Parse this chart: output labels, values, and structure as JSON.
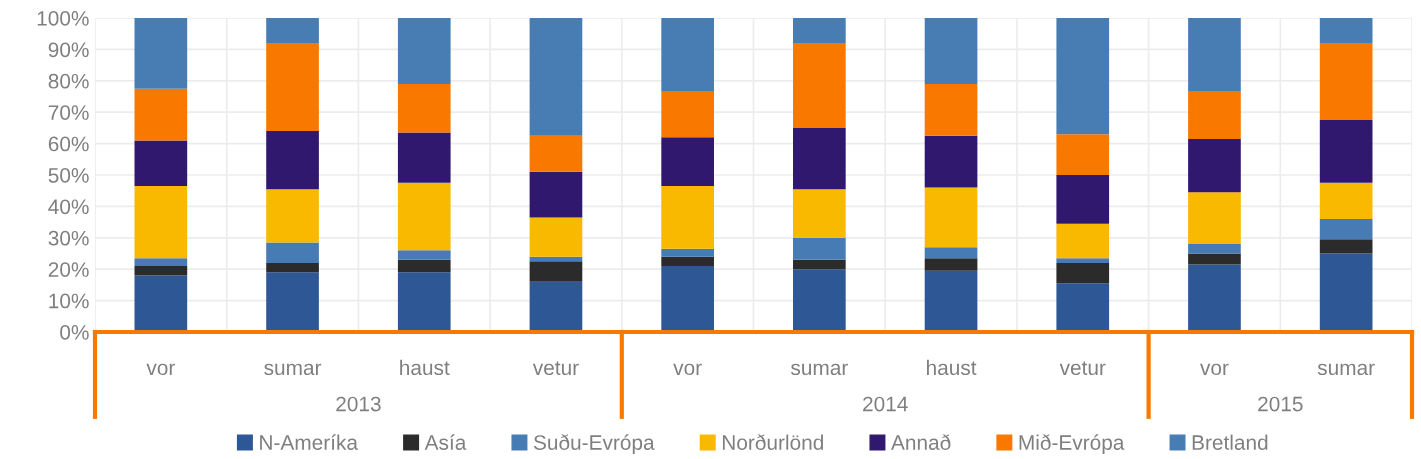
{
  "chart_data": {
    "type": "bar",
    "stacked": true,
    "categories": [
      "vor",
      "sumar",
      "haust",
      "vetur",
      "vor",
      "sumar",
      "haust",
      "vetur",
      "vor",
      "sumar"
    ],
    "annotations": [
      "2013",
      "2014",
      "2015"
    ],
    "series": [
      {
        "name": "N-Ameríka",
        "color": "#2e5795",
        "values": [
          18,
          19,
          19,
          16,
          21,
          20,
          19.5,
          15.5,
          21.5,
          25
        ]
      },
      {
        "name": "Asía",
        "color": "#2b2b2b",
        "values": [
          3,
          3,
          4,
          6.5,
          3,
          3,
          4,
          6.5,
          3.5,
          4.5
        ]
      },
      {
        "name": "Suðu-Evrópa",
        "color": "#467cb3",
        "values": [
          2.5,
          6.5,
          3,
          1.5,
          2.5,
          7,
          3.5,
          1.5,
          3,
          6.5
        ]
      },
      {
        "name": "Norðurlönd",
        "color": "#f9b900",
        "values": [
          23,
          17,
          21.5,
          12.5,
          20,
          15.5,
          19,
          11,
          16.5,
          11.5
        ]
      },
      {
        "name": "Annað",
        "color": "#31186f",
        "values": [
          14.5,
          18.5,
          16,
          14.5,
          15.5,
          19.5,
          16.5,
          15.5,
          17,
          20
        ]
      },
      {
        "name": "Mið-Evrópa",
        "color": "#f97800",
        "values": [
          16.5,
          28,
          15.5,
          11.5,
          14.5,
          27,
          16.5,
          13,
          15,
          24.5
        ]
      },
      {
        "name": "Bretland",
        "color": "#477db2",
        "values": [
          22.5,
          8,
          21,
          37.5,
          23.5,
          8,
          21,
          37,
          23.5,
          8
        ]
      }
    ],
    "ylim": [
      0,
      100
    ],
    "yticks": [
      {
        "value": 0,
        "label": "0%"
      },
      {
        "value": 10,
        "label": "10%"
      },
      {
        "value": 20,
        "label": "20%"
      },
      {
        "value": 30,
        "label": "30%"
      },
      {
        "value": 40,
        "label": "40%"
      },
      {
        "value": 50,
        "label": "50%"
      },
      {
        "value": 60,
        "label": "60%"
      },
      {
        "value": 70,
        "label": "70%"
      },
      {
        "value": 80,
        "label": "80%"
      },
      {
        "value": 90,
        "label": "90%"
      },
      {
        "value": 100,
        "label": "100%"
      }
    ],
    "grid": true,
    "legend": "bottom"
  }
}
